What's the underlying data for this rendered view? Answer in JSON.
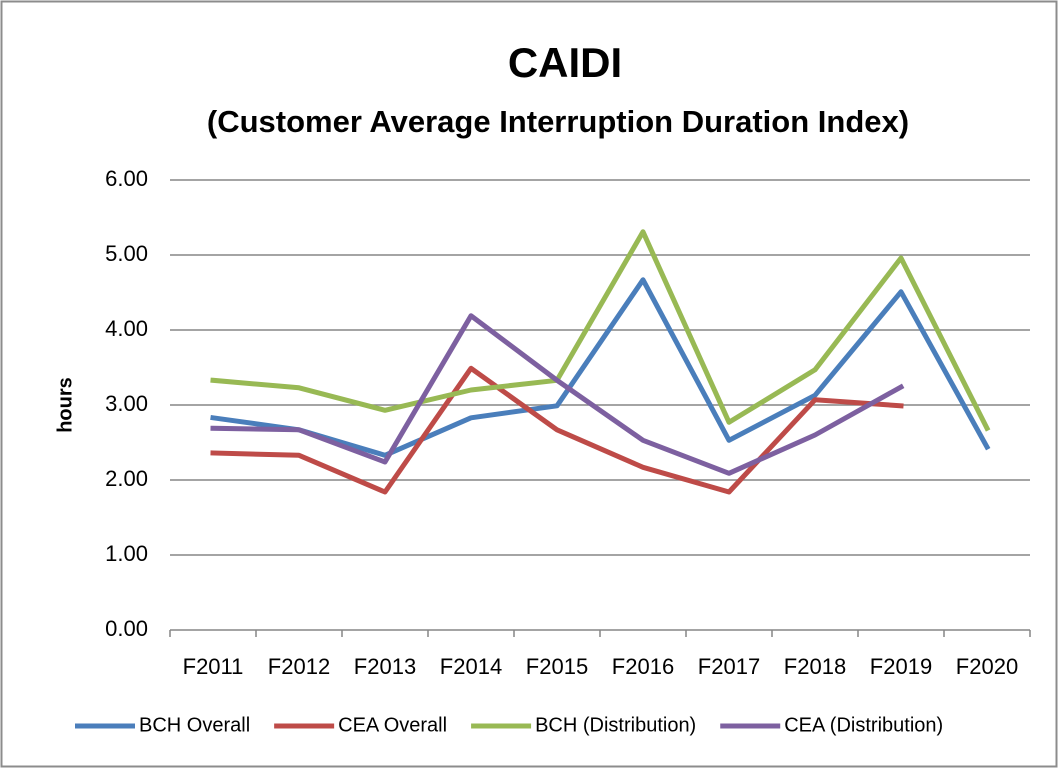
{
  "chart_data": {
    "type": "line",
    "title": "CAIDI",
    "subtitle": "(Customer Average Interruption Duration Index)",
    "y_label": "hours",
    "categories": [
      "F2011",
      "F2012",
      "F2013",
      "F2014",
      "F2015",
      "F2016",
      "F2017",
      "F2018",
      "F2019",
      "F2020"
    ],
    "series": [
      {
        "name": "BCH Overall",
        "color": "#4a7ebb",
        "values": [
          2.83,
          2.67,
          2.33,
          2.83,
          2.99,
          4.67,
          2.53,
          3.13,
          4.51,
          2.44
        ]
      },
      {
        "name": "CEA Overall",
        "color": "#be4b48",
        "values": [
          2.36,
          2.33,
          1.84,
          3.49,
          2.67,
          2.17,
          1.84,
          3.07,
          2.99,
          null
        ]
      },
      {
        "name": "BCH (Distribution)",
        "color": "#98b954",
        "values": [
          3.33,
          3.23,
          2.93,
          3.2,
          3.33,
          5.31,
          2.77,
          3.47,
          4.96,
          2.69
        ]
      },
      {
        "name": "CEA (Distribution)",
        "color": "#7d60a0",
        "values": [
          2.69,
          2.67,
          2.24,
          4.19,
          3.33,
          2.53,
          2.09,
          2.6,
          3.24,
          null
        ]
      }
    ],
    "ylim": [
      0,
      6
    ],
    "yticks": [
      {
        "value": 0,
        "label": "0.00"
      },
      {
        "value": 1,
        "label": "1.00"
      },
      {
        "value": 2,
        "label": "2.00"
      },
      {
        "value": 3,
        "label": "3.00"
      },
      {
        "value": 4,
        "label": "4.00"
      },
      {
        "value": 5,
        "label": "5.00"
      },
      {
        "value": 6,
        "label": "6.00"
      }
    ],
    "grid": true,
    "legend": "bottom"
  }
}
